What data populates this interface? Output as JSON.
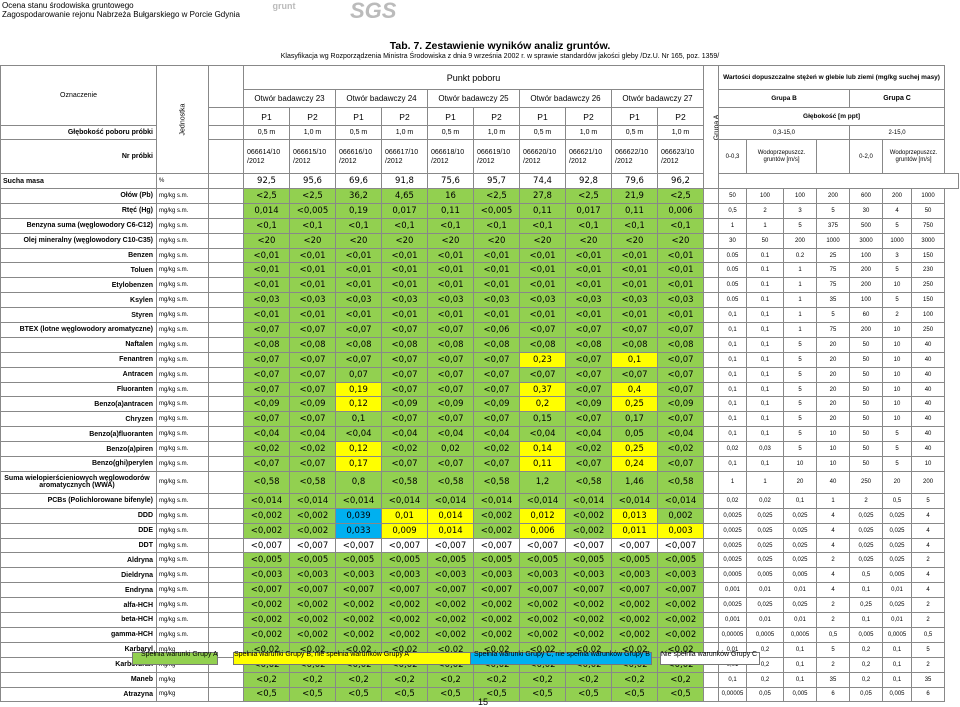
{
  "header": {
    "org_line1": "Ocena stanu środowiska gruntowego",
    "org_line2": "Zagospodarowanie rejonu Nabrzeża Bułgarskiego w Porcie Gdynia",
    "logo1": "grunt",
    "logo2": "SGS"
  },
  "title": "Tab. 7. Zestawienie wyników analiz gruntów.",
  "subtitle": "Klasyfikacja wg Rozporządzenia Ministra Środowiska z dnia 9 września 2002 r. w sprawie standardów jakości gleby /Dz.U. Nr 165, poz. 1359/",
  "head": {
    "oznaczenie": "Oznaczenie",
    "jednostka": "Jednostka",
    "punkt": "Punkt poboru",
    "wartosci": "Wartości dopuszczalne stężeń w glebie lub ziemi (mg/kg suchej masy)",
    "grupa_a": "Grupa A",
    "grupa_b": "Grupa B",
    "grupa_c": "Grupa C",
    "glebokosc_ppt": "Głębokość [m ppt]",
    "b_range": "0,3-15,0",
    "c_range": "2-15,0",
    "b_first": "0-0,3",
    "c_first": "0-2,0",
    "wodoprz": "Wodoprzepuszcz. gruntów [m/s]",
    "do": "Do 10⁻⁷",
    "ponizej": "Poniżej 10⁻⁷",
    "glebokosc_label": "Głębokość poboru próbki",
    "nr_label": "Nr próbki",
    "boreholes": [
      "Otwór badawczy 23",
      "Otwór badawczy 24",
      "Otwór badawczy 25",
      "Otwór badawczy 26",
      "Otwór badawczy 27"
    ],
    "p_labels": [
      "P1",
      "P2",
      "P1",
      "P2",
      "P1",
      "P2",
      "P1",
      "P2",
      "P1",
      "P2"
    ],
    "depths": [
      "0,5 m",
      "1,0 m",
      "0,5 m",
      "1,0 m",
      "0,5 m",
      "1,0 m",
      "0,5 m",
      "1,0 m",
      "0,5 m",
      "1,0 m"
    ],
    "samples": [
      "066614/10 /2012",
      "066615/10 /2012",
      "066616/10 /2012",
      "066617/10 /2012",
      "066618/10 /2012",
      "066619/10 /2012",
      "066620/10 /2012",
      "066621/10 /2012",
      "066622/10 /2012",
      "066623/10 /2012"
    ]
  },
  "sucha": {
    "label": "Sucha masa",
    "unit": "%",
    "values": [
      "92,5",
      "95,6",
      "69,6",
      "91,8",
      "75,6",
      "95,7",
      "74,4",
      "92,8",
      "79,6",
      "96,2"
    ]
  },
  "rows": [
    {
      "name": "Ołów (Pb)",
      "unit": "mg/kg s.m.",
      "v": [
        "<2,5",
        "<2,5",
        "36,2",
        "4,65",
        "16",
        "<2,5",
        "27,8",
        "<2,5",
        "21,9",
        "<2,5"
      ],
      "c": "gggggggggg",
      "lim": [
        "50",
        "100",
        "100",
        "200",
        "600",
        "200",
        "1000"
      ]
    },
    {
      "name": "Rtęć (Hg)",
      "unit": "mg/kg s.m.",
      "v": [
        "0,014",
        "<0,005",
        "0,19",
        "0,017",
        "0,11",
        "<0,005",
        "0,11",
        "0,017",
        "0,11",
        "0,006"
      ],
      "c": "gggggggggg",
      "lim": [
        "0,5",
        "2",
        "3",
        "5",
        "30",
        "4",
        "50"
      ]
    },
    {
      "name": "Benzyna suma (węglowodory C6-C12)",
      "unit": "mg/kg s.m.",
      "v": [
        "<0,1",
        "<0,1",
        "<0,1",
        "<0,1",
        "<0,1",
        "<0,1",
        "<0,1",
        "<0,1",
        "<0,1",
        "<0,1"
      ],
      "c": "gggggggggg",
      "lim": [
        "1",
        "1",
        "5",
        "375",
        "500",
        "5",
        "750"
      ]
    },
    {
      "name": "Olej mineralny (węglowodory C10-C35)",
      "unit": "mg/kg s.m.",
      "v": [
        "<20",
        "<20",
        "<20",
        "<20",
        "<20",
        "<20",
        "<20",
        "<20",
        "<20",
        "<20"
      ],
      "c": "gggggggggg",
      "lim": [
        "30",
        "50",
        "200",
        "1000",
        "3000",
        "1000",
        "3000"
      ]
    },
    {
      "name": "Benzen",
      "unit": "mg/kg s.m.",
      "v": [
        "<0,01",
        "<0,01",
        "<0,01",
        "<0,01",
        "<0,01",
        "<0,01",
        "<0,01",
        "<0,01",
        "<0,01",
        "<0,01"
      ],
      "c": "gggggggggg",
      "lim": [
        "0.05",
        "0.1",
        "0.2",
        "25",
        "100",
        "3",
        "150"
      ]
    },
    {
      "name": "Toluen",
      "unit": "mg/kg s.m.",
      "v": [
        "<0,01",
        "<0,01",
        "<0,01",
        "<0,01",
        "<0,01",
        "<0,01",
        "<0,01",
        "<0,01",
        "<0,01",
        "<0,01"
      ],
      "c": "gggggggggg",
      "lim": [
        "0.05",
        "0.1",
        "1",
        "75",
        "200",
        "5",
        "230"
      ]
    },
    {
      "name": "Etylobenzen",
      "unit": "mg/kg s.m.",
      "v": [
        "<0,01",
        "<0,01",
        "<0,01",
        "<0,01",
        "<0,01",
        "<0,01",
        "<0,01",
        "<0,01",
        "<0,01",
        "<0,01"
      ],
      "c": "gggggggggg",
      "lim": [
        "0.05",
        "0.1",
        "1",
        "75",
        "200",
        "10",
        "250"
      ]
    },
    {
      "name": "Ksylen",
      "unit": "mg/kg s.m.",
      "v": [
        "<0,03",
        "<0,03",
        "<0,03",
        "<0,03",
        "<0,03",
        "<0,03",
        "<0,03",
        "<0,03",
        "<0,03",
        "<0,03"
      ],
      "c": "gggggggggg",
      "lim": [
        "0.05",
        "0.1",
        "1",
        "35",
        "100",
        "5",
        "150"
      ]
    },
    {
      "name": "Styren",
      "unit": "mg/kg s.m.",
      "v": [
        "<0,01",
        "<0,01",
        "<0,01",
        "<0,01",
        "<0,01",
        "<0,01",
        "<0,01",
        "<0,01",
        "<0,01",
        "<0,01"
      ],
      "c": "gggggggggg",
      "lim": [
        "0,1",
        "0,1",
        "1",
        "5",
        "60",
        "2",
        "100"
      ]
    },
    {
      "name": "BTEX (lotne węglowodory aromatyczne)",
      "unit": "mg/kg s.m.",
      "v": [
        "<0,07",
        "<0,07",
        "<0,07",
        "<0,07",
        "<0,07",
        "<0,06",
        "<0,07",
        "<0,07",
        "<0,07",
        "<0,07"
      ],
      "c": "gggggggggg",
      "lim": [
        "0,1",
        "0,1",
        "1",
        "75",
        "200",
        "10",
        "250"
      ]
    },
    {
      "name": "Naftalen",
      "unit": "mg/kg s.m.",
      "v": [
        "<0,08",
        "<0,08",
        "<0,08",
        "<0,08",
        "<0,08",
        "<0,08",
        "<0,08",
        "<0,08",
        "<0,08",
        "<0,08"
      ],
      "c": "gggggggggg",
      "lim": [
        "0,1",
        "0,1",
        "5",
        "20",
        "50",
        "10",
        "40"
      ]
    },
    {
      "name": "Fenantren",
      "unit": "mg/kg s.m.",
      "v": [
        "<0,07",
        "<0,07",
        "<0,07",
        "<0,07",
        "<0,07",
        "<0,07",
        "0,23",
        "<0,07",
        "0,1",
        "<0,07"
      ],
      "c": "ggggggBgBg",
      "lim": [
        "0,1",
        "0,1",
        "5",
        "20",
        "50",
        "10",
        "40"
      ]
    },
    {
      "name": "Antracen",
      "unit": "mg/kg s.m.",
      "v": [
        "<0,07",
        "<0,07",
        "0,07",
        "<0,07",
        "<0,07",
        "<0,07",
        "<0,07",
        "<0,07",
        "<0,07",
        "<0,07"
      ],
      "c": "gggggggggg",
      "lim": [
        "0,1",
        "0,1",
        "5",
        "20",
        "50",
        "10",
        "40"
      ]
    },
    {
      "name": "Fluoranten",
      "unit": "mg/kg s.m.",
      "v": [
        "<0,07",
        "<0,07",
        "0,19",
        "<0,07",
        "<0,07",
        "<0,07",
        "0,37",
        "<0,07",
        "0,4",
        "<0,07"
      ],
      "c": "ggBgggBgBg",
      "lim": [
        "0,1",
        "0,1",
        "5",
        "20",
        "50",
        "10",
        "40"
      ]
    },
    {
      "name": "Benzo(a)antracen",
      "unit": "mg/kg s.m.",
      "v": [
        "<0,09",
        "<0,09",
        "0,12",
        "<0,09",
        "<0,09",
        "<0,09",
        "0,2",
        "<0,09",
        "0,25",
        "<0,09"
      ],
      "c": "ggBgggBgBg",
      "lim": [
        "0,1",
        "0,1",
        "5",
        "20",
        "50",
        "10",
        "40"
      ]
    },
    {
      "name": "Chryzen",
      "unit": "mg/kg s.m.",
      "v": [
        "<0,07",
        "<0,07",
        "0,1",
        "<0,07",
        "<0,07",
        "<0,07",
        "0,15",
        "<0,07",
        "0,17",
        "<0,07"
      ],
      "c": "gggggggggg",
      "lim": [
        "0,1",
        "0,1",
        "5",
        "20",
        "50",
        "10",
        "40"
      ]
    },
    {
      "name": "Benzo(a)fluoranten",
      "unit": "mg/kg s.m.",
      "v": [
        "<0,04",
        "<0,04",
        "<0,04",
        "<0,04",
        "<0,04",
        "<0,04",
        "<0,04",
        "<0,04",
        "0,05",
        "<0,04"
      ],
      "c": "gggggggggg",
      "lim": [
        "0,1",
        "0,1",
        "5",
        "10",
        "50",
        "5",
        "40"
      ]
    },
    {
      "name": "Benzo(a)piren",
      "unit": "mg/kg s.m.",
      "v": [
        "<0,02",
        "<0,02",
        "0,12",
        "<0,02",
        "0,02",
        "<0,02",
        "0,14",
        "<0,02",
        "0,25",
        "<0,02"
      ],
      "c": "ggBgggBgBg",
      "lim": [
        "0,02",
        "0,03",
        "5",
        "10",
        "50",
        "5",
        "40"
      ]
    },
    {
      "name": "Benzo(ghi)perylen",
      "unit": "mg/kg s.m.",
      "v": [
        "<0,07",
        "<0,07",
        "0,17",
        "<0,07",
        "<0,07",
        "<0,07",
        "0,11",
        "<0,07",
        "0,24",
        "<0,07"
      ],
      "c": "ggBgggBgBg",
      "lim": [
        "0,1",
        "0,1",
        "10",
        "10",
        "50",
        "5",
        "10"
      ]
    },
    {
      "name": "Suma wielopierścieniowych węglowodorów aromatycznych (WWA)",
      "unit": "mg/kg s.m.",
      "v": [
        "<0,58",
        "<0,58",
        "0,8",
        "<0,58",
        "<0,58",
        "<0,58",
        "1,2",
        "<0,58",
        "1,46",
        "<0,58"
      ],
      "c": "gggggggggg",
      "lim": [
        "1",
        "1",
        "20",
        "40",
        "250",
        "20",
        "200"
      ]
    },
    {
      "name": "PCBs (Polichlorowane bifenyle)",
      "unit": "mg/kg s.m.",
      "v": [
        "<0,014",
        "<0,014",
        "<0,014",
        "<0,014",
        "<0,014",
        "<0,014",
        "<0,014",
        "<0,014",
        "<0,014",
        "<0,014"
      ],
      "c": "gggggggggg",
      "lim": [
        "0,02",
        "0,02",
        "0,1",
        "1",
        "2",
        "0,5",
        "5"
      ]
    },
    {
      "name": "DDD",
      "unit": "mg/kg s.m.",
      "v": [
        "<0,002",
        "<0,002",
        "0,039",
        "0,01",
        "0,014",
        "<0,002",
        "0,012",
        "<0,002",
        "0,013",
        "0,002"
      ],
      "c": "ggCBBgBgBg",
      "lim": [
        "0,0025",
        "0,025",
        "0,025",
        "4",
        "0,025",
        "0,025",
        "4"
      ]
    },
    {
      "name": "DDE",
      "unit": "mg/kg s.m.",
      "v": [
        "<0,002",
        "<0,002",
        "0,033",
        "0,009",
        "0,014",
        "<0,002",
        "0,006",
        "<0,002",
        "0,011",
        "0,003"
      ],
      "c": "ggCBBgBgBB",
      "lim": [
        "0,0025",
        "0,025",
        "0,025",
        "4",
        "0,025",
        "0,025",
        "4"
      ]
    },
    {
      "name": "DDT",
      "unit": "mg/kg s.m.",
      "v": [
        "<0,007",
        "<0,007",
        "<0,007",
        "<0,007",
        "<0,007",
        "<0,007",
        "<0,007",
        "<0,007",
        "<0,007",
        "<0,007"
      ],
      "c": "nnnnnnnnnn",
      "lim": [
        "0,0025",
        "0,025",
        "0,025",
        "4",
        "0,025",
        "0,025",
        "4"
      ]
    },
    {
      "name": "Aldryna",
      "unit": "mg/kg s.m.",
      "v": [
        "<0,005",
        "<0,005",
        "<0,005",
        "<0,005",
        "<0,005",
        "<0,005",
        "<0,005",
        "<0,005",
        "<0,005",
        "<0,005"
      ],
      "c": "gggggggggg",
      "lim": [
        "0,0025",
        "0,025",
        "0,025",
        "2",
        "0,025",
        "0,025",
        "2"
      ]
    },
    {
      "name": "Dieldryna",
      "unit": "mg/kg s.m.",
      "v": [
        "<0,003",
        "<0,003",
        "<0,003",
        "<0,003",
        "<0,003",
        "<0,003",
        "<0,003",
        "<0,003",
        "<0,003",
        "<0,003"
      ],
      "c": "gggggggggg",
      "lim": [
        "0,0005",
        "0,005",
        "0,005",
        "4",
        "0,5",
        "0,005",
        "4"
      ]
    },
    {
      "name": "Endryna",
      "unit": "mg/kg s.m.",
      "v": [
        "<0,007",
        "<0,007",
        "<0,007",
        "<0,007",
        "<0,007",
        "<0,007",
        "<0,007",
        "<0,007",
        "<0,007",
        "<0,007"
      ],
      "c": "gggggggggg",
      "lim": [
        "0,001",
        "0,01",
        "0,01",
        "4",
        "0,1",
        "0,01",
        "4"
      ]
    },
    {
      "name": "alfa-HCH",
      "unit": "mg/kg s.m.",
      "v": [
        "<0,002",
        "<0,002",
        "<0,002",
        "<0,002",
        "<0,002",
        "<0,002",
        "<0,002",
        "<0,002",
        "<0,002",
        "<0,002"
      ],
      "c": "gggggggggg",
      "lim": [
        "0,0025",
        "0,025",
        "0,025",
        "2",
        "0,25",
        "0,025",
        "2"
      ]
    },
    {
      "name": "beta-HCH",
      "unit": "mg/kg s.m.",
      "v": [
        "<0,002",
        "<0,002",
        "<0,002",
        "<0,002",
        "<0,002",
        "<0,002",
        "<0,002",
        "<0,002",
        "<0,002",
        "<0,002"
      ],
      "c": "gggggggggg",
      "lim": [
        "0,001",
        "0,01",
        "0,01",
        "2",
        "0,1",
        "0,01",
        "2"
      ]
    },
    {
      "name": "gamma-HCH",
      "unit": "mg/kg s.m.",
      "v": [
        "<0,002",
        "<0,002",
        "<0,002",
        "<0,002",
        "<0,002",
        "<0,002",
        "<0,002",
        "<0,002",
        "<0,002",
        "<0,002"
      ],
      "c": "gggggggggg",
      "lim": [
        "0,00005",
        "0,0005",
        "0,0005",
        "0,5",
        "0,005",
        "0,0005",
        "0,5"
      ]
    },
    {
      "name": "Karbaryl",
      "unit": "mg/kg",
      "v": [
        "<0,02",
        "<0,02",
        "<0,02",
        "<0,02",
        "<0,02",
        "<0,02",
        "<0,02",
        "<0,02",
        "<0,02",
        "<0,02"
      ],
      "c": "gggggggggg",
      "lim": [
        "0,01",
        "0,2",
        "0,1",
        "5",
        "0,2",
        "0,1",
        "5"
      ]
    },
    {
      "name": "Karbofuran",
      "unit": "mg/kg",
      "v": [
        "<0,02",
        "<0,02",
        "<0,02",
        "<0,02",
        "<0,02",
        "<0,02",
        "<0,02",
        "<0,02",
        "<0,02",
        "<0,02"
      ],
      "c": "gggggggggg",
      "lim": [
        "0,01",
        "0,2",
        "0,1",
        "2",
        "0,2",
        "0,1",
        "2"
      ]
    },
    {
      "name": "Maneb",
      "unit": "mg/kg",
      "v": [
        "<0,2",
        "<0,2",
        "<0,2",
        "<0,2",
        "<0,2",
        "<0,2",
        "<0,2",
        "<0,2",
        "<0,2",
        "<0,2"
      ],
      "c": "gggggggggg",
      "lim": [
        "0,1",
        "0,2",
        "0,1",
        "35",
        "0,2",
        "0,1",
        "35"
      ]
    },
    {
      "name": "Atrazyna",
      "unit": "mg/kg",
      "v": [
        "<0,5",
        "<0,5",
        "<0,5",
        "<0,5",
        "<0,5",
        "<0,5",
        "<0,5",
        "<0,5",
        "<0,5",
        "<0,5"
      ],
      "c": "gggggggggg",
      "lim": [
        "0,00005",
        "0,05",
        "0,005",
        "6",
        "0,05",
        "0,005",
        "6"
      ]
    }
  ],
  "legend": {
    "a": "Spełnia warunki Grupy A",
    "b": "Spełnia warunki Grupy B, nie spełnia warunków Grupy A",
    "c": "Spełnia warunki Grupy C, nie spełnia warunków Grupy B",
    "n": "Nie spełnia warunków Grupy C"
  },
  "colors": {
    "grupa_a": "#92d050",
    "grupa_b": "#ffff00",
    "grupa_c": "#00b0f0",
    "none": "#ffffff"
  },
  "page_number": "15"
}
